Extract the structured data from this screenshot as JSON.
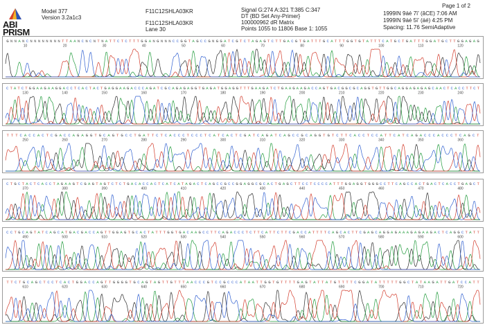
{
  "header": {
    "logo_line1": "ABI",
    "logo_line2": "PRISM",
    "model": "Model 377",
    "version": "Version 3.2a1c3",
    "sample_name": "F11C12SHLA03KR",
    "sample_name_2": "F11C12SHLA03KR",
    "lane": "Lane 30",
    "signal": "Signal G:274 A:321 T:385 C:347",
    "dye_set": "DT {BD Set Any-Primer}",
    "matrix": "100000962 dR Matrix",
    "points": "Points 1055 to 11806  Base 1: 1055",
    "page": "Page 1 of 2",
    "date1": "1999IN 9áé 7ï' (âCE)  7:06 AM",
    "date2": "1999IN 9áé 5ï' (áé)  4:25 PM",
    "spacing": "Spacing: 11.76 SemiAdaptive"
  },
  "colors": {
    "G": "#2a2a2a",
    "A": "#1f9a3a",
    "T": "#d23a2a",
    "C": "#2f5fd0"
  },
  "panels": [
    {
      "seq": "GNNANCNNNNNNNNTTAANCNCNTNATTCTCTTTGGANGNNNCCGGTAGCCGNGGATCGTCTAGAGTCTTGACGTGATTTGCATTTGGTGTATTTCATGCTGATTTGGATGCTTGGAGAG",
      "nums": [
        "10",
        "20",
        "30",
        "40",
        "50",
        "60",
        "70",
        "80",
        "90",
        "100",
        "110",
        "120"
      ]
    },
    {
      "seq": "CTATCTGGAAGAAGGACCTCACTACTGAGGAAGACCCAGATCGCAGAGAGGTGAGATGGAGGTTTGAAGATCTGAAGAAGACCAGTGACGGCGCAGGTGTTGGCAGGAGAGAGCAACTCACCTTCT",
      "nums": [
        "130",
        "140",
        "150",
        "160",
        "170",
        "180",
        "190",
        "200",
        "210",
        "220",
        "230",
        "240"
      ]
    },
    {
      "seq": "TTTCACCACTCGACCAGAGGTGCAGTGCCTGATTCTCACCCTCCCTCATCACTCGATCAGATCAGCCGCAGGTGTCTTCACCTCCATTCATCAGACCCACCCTCAGCT",
      "nums": [
        "250",
        "260",
        "270",
        "280",
        "290",
        "300",
        "310",
        "320",
        "330",
        "340",
        "350",
        "360"
      ]
    },
    {
      "seq": "CTGCTACTCACCTAGAAGTCGAGTAGTCTCTGACACCACTCATCATAGACTCAGCCGCCGGAGGCGCACTGAGCTTCCTCCCCATTTGGAGGTGGGCCTTCAGCCACTGACTCACCTGAGCT",
      "nums": [
        "370",
        "380",
        "390",
        "400",
        "410",
        "420",
        "430",
        "440",
        "450",
        "460",
        "470",
        "480"
      ]
    },
    {
      "seq": "CCTGCAGTATCAGCATGACGACCAGTTGGAGTGCACTATTTGGTGACAAGCCTTCAGACCCTCTTCATTCTTCGACCATTTTCAGCACTTCGAGCAGGAGAAAGAGAAGACTCAGGCTATT",
      "nums": [
        "490",
        "500",
        "510",
        "520",
        "530",
        "540",
        "550",
        "560",
        "570",
        "580",
        "590",
        "600"
      ]
    },
    {
      "seq": "TTCTGCAGCTCCTCACTGGACCAGTTGGGGTGCAGTAGTTGTTTAACCCGTCCGCCCATAATTGGTGTTTTGAGTATTATGTTTTCGGATATTTTTGGCTATAAGATTGATCCATT",
      "nums": [
        "610",
        "620",
        "630",
        "640",
        "650",
        "660",
        "670",
        "680",
        "690",
        "700",
        "710",
        "720"
      ]
    }
  ]
}
